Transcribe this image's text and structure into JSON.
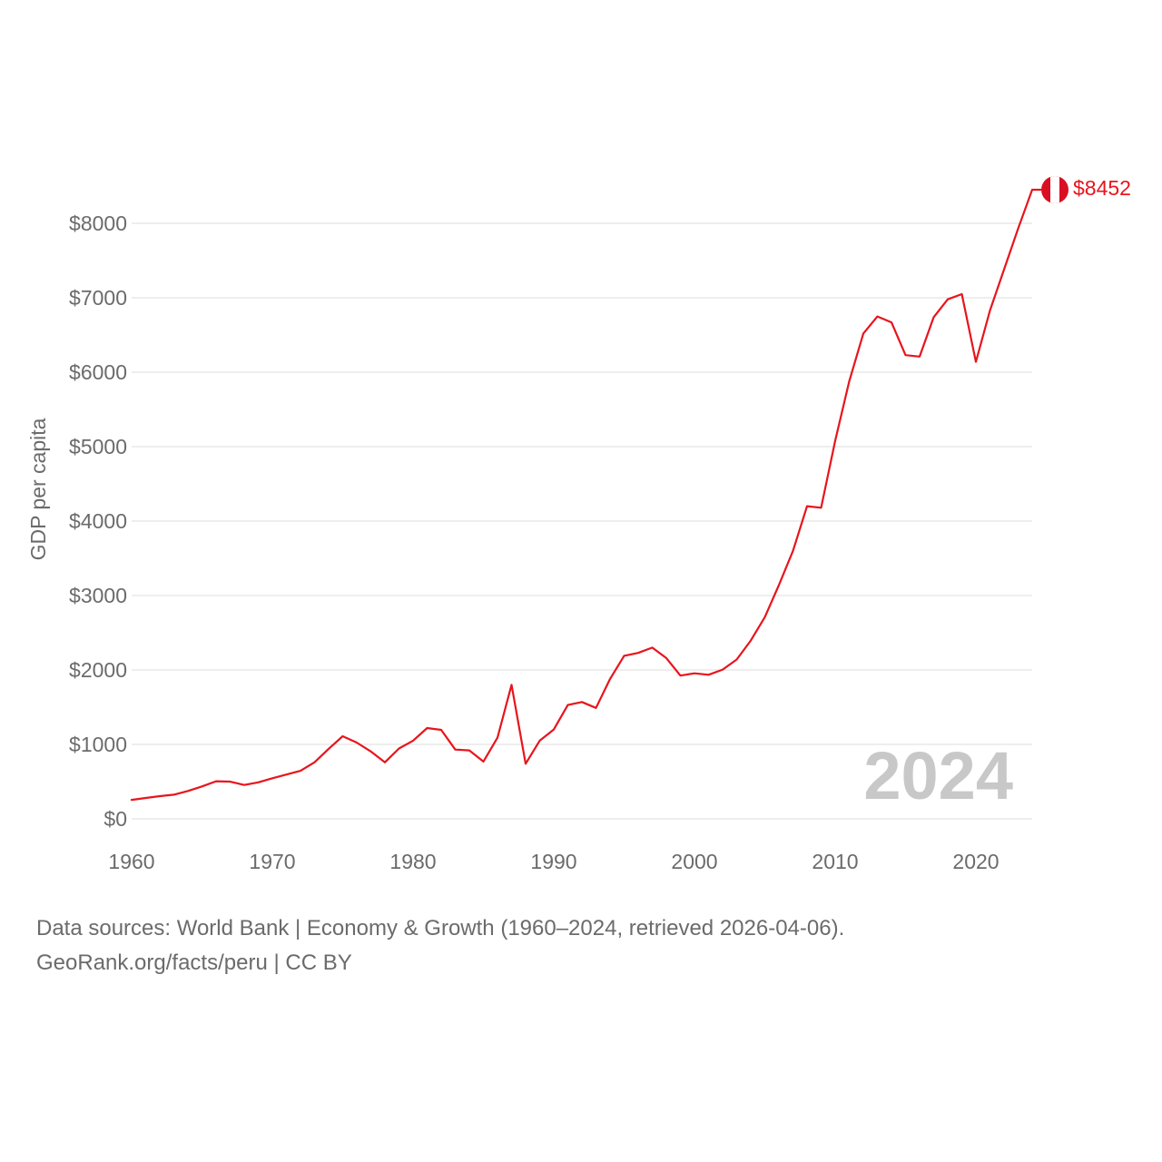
{
  "chart_data": {
    "type": "line",
    "title": "",
    "xlabel": "",
    "ylabel": "GDP per capita",
    "xlim": [
      1960,
      2024
    ],
    "ylim": [
      0,
      8452
    ],
    "x_ticks": [
      1960,
      1970,
      1980,
      1990,
      2000,
      2010,
      2020
    ],
    "x_tick_labels": [
      "1960",
      "1970",
      "1980",
      "1990",
      "2000",
      "2010",
      "2020"
    ],
    "y_ticks": [
      0,
      1000,
      2000,
      3000,
      4000,
      5000,
      6000,
      7000,
      8000
    ],
    "y_tick_labels": [
      "$0",
      "$1000",
      "$2000",
      "$3000",
      "$4000",
      "$5000",
      "$6000",
      "$7000",
      "$8000"
    ],
    "grid": true,
    "series": [
      {
        "name": "Peru",
        "color": "#e8141c",
        "end_label": "$8452",
        "x": [
          1960,
          1961,
          1962,
          1963,
          1964,
          1965,
          1966,
          1967,
          1968,
          1969,
          1970,
          1971,
          1972,
          1973,
          1974,
          1975,
          1976,
          1977,
          1978,
          1979,
          1980,
          1981,
          1982,
          1983,
          1984,
          1985,
          1986,
          1987,
          1988,
          1989,
          1990,
          1991,
          1992,
          1993,
          1994,
          1995,
          1996,
          1997,
          1998,
          1999,
          2000,
          2001,
          2002,
          2003,
          2004,
          2005,
          2006,
          2007,
          2008,
          2009,
          2010,
          2011,
          2012,
          2013,
          2014,
          2015,
          2016,
          2017,
          2018,
          2019,
          2020,
          2021,
          2022,
          2023,
          2024
        ],
        "values": [
          255,
          280,
          305,
          325,
          375,
          435,
          505,
          500,
          455,
          490,
          545,
          595,
          645,
          760,
          940,
          1110,
          1025,
          905,
          760,
          945,
          1050,
          1220,
          1195,
          930,
          920,
          770,
          1090,
          1800,
          740,
          1050,
          1200,
          1530,
          1570,
          1490,
          1880,
          2190,
          2230,
          2300,
          2160,
          1925,
          1955,
          1935,
          2005,
          2140,
          2395,
          2710,
          3140,
          3600,
          4200,
          4180,
          5080,
          5880,
          6520,
          6750,
          6670,
          6230,
          6210,
          6740,
          6980,
          7050,
          6140,
          6830,
          7380,
          7930,
          8452
        ]
      }
    ],
    "annotations": [
      "2024"
    ],
    "flag_colors": [
      "#d91023",
      "#ffffff"
    ]
  },
  "footer": {
    "line1": "Data sources: World Bank | Economy & Growth (1960–2024, retrieved 2026-04-06).",
    "line2": "GeoRank.org/facts/peru | CC BY"
  }
}
